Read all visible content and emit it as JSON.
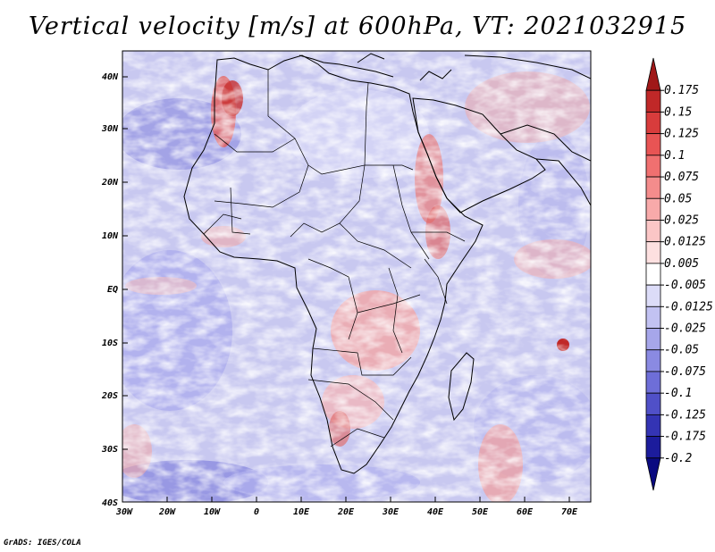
{
  "title": "Vertical velocity [m/s] at 600hPa, VT: 2021032915",
  "footer": "GrADS: IGES/COLA",
  "map": {
    "lon_labels": [
      "30W",
      "20W",
      "10W",
      "0",
      "10E",
      "20E",
      "30E",
      "40E",
      "50E",
      "60E",
      "70E"
    ],
    "lat_labels": [
      "40N",
      "30N",
      "20N",
      "10N",
      "EQ",
      "10S",
      "20S",
      "30S",
      "40S"
    ],
    "lon_range": [
      -30,
      75
    ],
    "lat_range": [
      -40,
      45
    ],
    "field": "vertical velocity at 600hPa"
  },
  "colorbar": {
    "levels": [
      "0.175",
      "0.15",
      "0.125",
      "0.1",
      "0.075",
      "0.05",
      "0.025",
      "0.0125",
      "0.005",
      "-0.005",
      "-0.0125",
      "-0.025",
      "-0.05",
      "-0.075",
      "-0.1",
      "-0.125",
      "-0.175",
      "-0.2"
    ],
    "colors": [
      "#a01818",
      "#c02828",
      "#d83c3c",
      "#e85454",
      "#f07070",
      "#f48c8c",
      "#f8aaaa",
      "#fbc6c6",
      "#fde0e0",
      "#ffffff",
      "#dcdcf8",
      "#c2c2f2",
      "#a6a6ea",
      "#8a8ae2",
      "#6e6ed8",
      "#5050c8",
      "#3434b4",
      "#1c1c9c",
      "#0a0a80"
    ]
  }
}
